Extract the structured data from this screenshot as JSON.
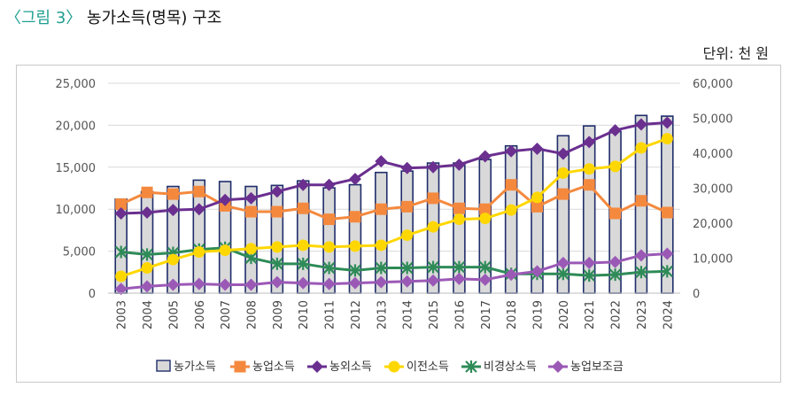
{
  "figure": {
    "label": "〈그림 3〉",
    "title": "농가소득(명목) 구조",
    "unit": "단위: 천 원"
  },
  "colors": {
    "bar_fill": "#d9d9d9",
    "bar_stroke": "#1f2d6b",
    "farm_income": "#f4893e",
    "nonfarm_income": "#6a2f8f",
    "transfer_income": "#ffd700",
    "irregular_income": "#2e8b57",
    "subsidy": "#9b59b6",
    "accent": "#1f9f8f"
  },
  "chart_data": {
    "type": "bar",
    "title": "농가소득(명목) 구조",
    "categories": [
      "2003",
      "2004",
      "2005",
      "2006",
      "2007",
      "2008",
      "2009",
      "2010",
      "2011",
      "2012",
      "2013",
      "2014",
      "2015",
      "2016",
      "2017",
      "2018",
      "2019",
      "2020",
      "2021",
      "2022",
      "2023",
      "2024"
    ],
    "y_left": {
      "ylim": [
        0,
        25000
      ],
      "ticks": [
        "0",
        "5,000",
        "10,000",
        "15,000",
        "20,000",
        "25,000"
      ]
    },
    "y_right": {
      "ylim": [
        0,
        60000
      ],
      "ticks": [
        "0",
        "10,000",
        "20,000",
        "30,000",
        "40,000",
        "50,000",
        "60,000"
      ]
    },
    "series": [
      {
        "name": "농가소득",
        "type": "bar",
        "axis": "right",
        "values": [
          26900,
          29000,
          30500,
          32300,
          31900,
          30500,
          30800,
          32100,
          30100,
          31000,
          34500,
          34900,
          37200,
          37200,
          38200,
          42100,
          41200,
          45000,
          47800,
          46200,
          50800,
          50600
        ]
      },
      {
        "name": "농업소득",
        "type": "line",
        "axis": "left",
        "values": [
          10600,
          12000,
          11800,
          12100,
          10400,
          9700,
          9700,
          10100,
          8800,
          9100,
          10000,
          10300,
          11300,
          10100,
          10000,
          12900,
          10300,
          11800,
          12900,
          9500,
          11000,
          9600
        ]
      },
      {
        "name": "농외소득",
        "type": "line",
        "axis": "left",
        "values": [
          9500,
          9600,
          9900,
          10000,
          11100,
          11300,
          12100,
          12900,
          12900,
          13600,
          15700,
          14900,
          15000,
          15300,
          16300,
          16900,
          17200,
          16600,
          18000,
          19400,
          20100,
          20300
        ]
      },
      {
        "name": "이전소득",
        "type": "line",
        "axis": "left",
        "values": [
          2000,
          3000,
          4000,
          4900,
          5100,
          5300,
          5500,
          5700,
          5500,
          5600,
          5700,
          6900,
          7900,
          8800,
          8900,
          9900,
          11400,
          14300,
          14800,
          15100,
          17300,
          18400
        ]
      },
      {
        "name": "비경상소득",
        "type": "line",
        "axis": "left",
        "values": [
          4900,
          4600,
          4800,
          5200,
          5400,
          4200,
          3500,
          3500,
          3000,
          2700,
          3000,
          3000,
          3100,
          3100,
          3100,
          2300,
          2300,
          2300,
          2100,
          2200,
          2500,
          2600
        ]
      },
      {
        "name": "농업보조금",
        "type": "line",
        "axis": "left",
        "values": [
          500,
          800,
          1000,
          1100,
          1000,
          1000,
          1300,
          1200,
          1100,
          1200,
          1300,
          1400,
          1500,
          1700,
          1600,
          2200,
          2600,
          3600,
          3600,
          3700,
          4500,
          4700
        ]
      }
    ],
    "legend": [
      "농가소득",
      "농업소득",
      "농외소득",
      "이전소득",
      "비경상소득",
      "농업보조금"
    ],
    "legend_position": "bottom"
  }
}
